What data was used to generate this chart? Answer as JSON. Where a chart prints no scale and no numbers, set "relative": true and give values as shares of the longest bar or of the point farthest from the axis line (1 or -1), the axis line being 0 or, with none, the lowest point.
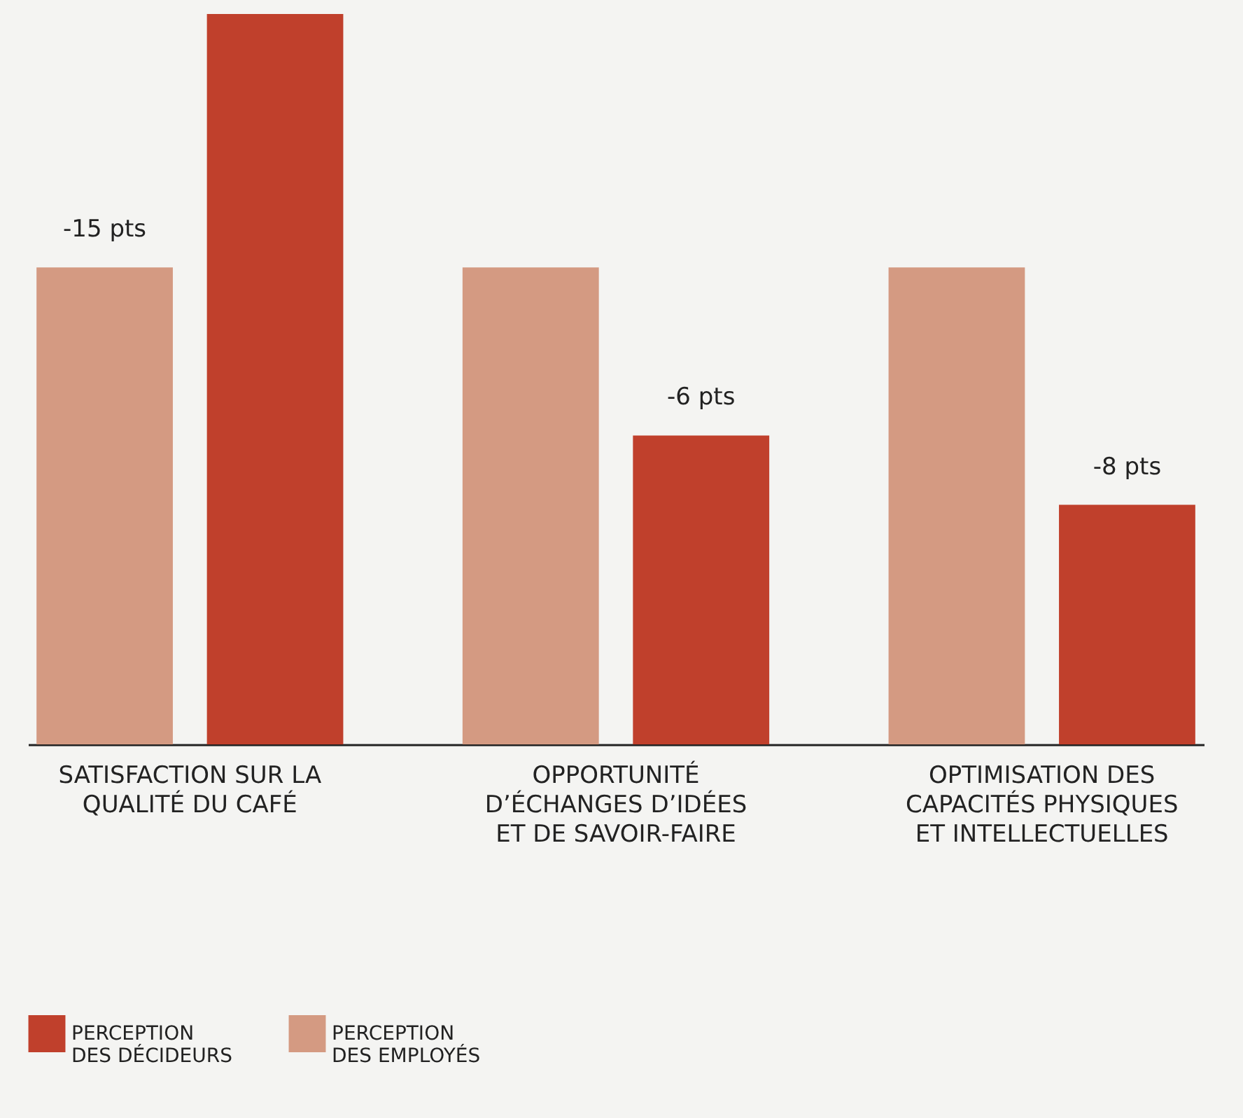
{
  "chart_data": {
    "type": "bar",
    "relative": true,
    "categories": [
      "SATISFACTION SUR LA\nQUALITÉ DU CAFÉ",
      "OPPORTUNITÉ\nD’ÉCHANGES D’IDÉES\nET DE SAVOIR-FAIRE",
      "OPTIMISATION DES\nCAPACITÉS PHYSIQUES\nET INTELLECTUELLES"
    ],
    "series": [
      {
        "name": "PERCEPTION\nDES EMPLOYÉS",
        "color": "#d49a82",
        "values": [
          0.653,
          0.653,
          0.653
        ]
      },
      {
        "name": "PERCEPTION\nDES DÉCIDEURS",
        "color": "#c0402c",
        "values": [
          1,
          0.423,
          0.328
        ]
      }
    ],
    "annotations": [
      "-15 pts",
      "-6 pts",
      "-8 pts"
    ],
    "legend": "bottom left"
  }
}
